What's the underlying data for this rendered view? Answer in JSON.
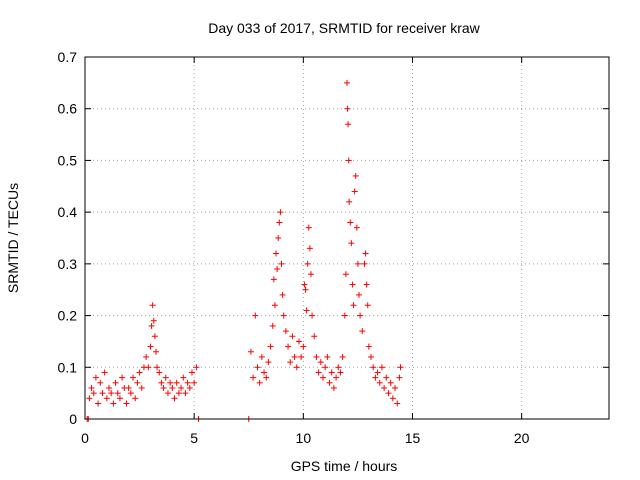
{
  "chart_data": {
    "type": "scatter",
    "title": "Day 033 of 2017, SRMTID for receiver kraw",
    "xlabel": "GPS time / hours",
    "ylabel": "SRMTID / TECUs",
    "xlim": [
      0,
      24
    ],
    "ylim": [
      0,
      0.7
    ],
    "xticks": [
      0,
      5,
      10,
      15,
      20
    ],
    "yticks": [
      0,
      0.1,
      0.2,
      0.3,
      0.4,
      0.5,
      0.6,
      0.7
    ],
    "xtick_labels": [
      "0",
      "5",
      "10",
      "15",
      "20"
    ],
    "ytick_labels": [
      "0",
      "0.1",
      "0.2",
      "0.3",
      "0.4",
      "0.5",
      "0.6",
      "0.7"
    ],
    "grid": true,
    "marker": "+",
    "color": "#ff0000",
    "series": [
      {
        "name": "SRMTID",
        "points": [
          [
            0.1,
            0.0
          ],
          [
            0.15,
            0.0
          ],
          [
            5.2,
            0.0
          ],
          [
            7.5,
            0.0
          ],
          [
            0.2,
            0.04
          ],
          [
            0.3,
            0.06
          ],
          [
            0.4,
            0.05
          ],
          [
            0.5,
            0.08
          ],
          [
            0.6,
            0.03
          ],
          [
            0.7,
            0.07
          ],
          [
            0.8,
            0.05
          ],
          [
            0.9,
            0.09
          ],
          [
            1.0,
            0.04
          ],
          [
            1.1,
            0.06
          ],
          [
            1.2,
            0.05
          ],
          [
            1.3,
            0.03
          ],
          [
            1.4,
            0.07
          ],
          [
            1.5,
            0.05
          ],
          [
            1.6,
            0.04
          ],
          [
            1.7,
            0.08
          ],
          [
            1.8,
            0.06
          ],
          [
            1.9,
            0.03
          ],
          [
            2.0,
            0.06
          ],
          [
            2.1,
            0.05
          ],
          [
            2.2,
            0.08
          ],
          [
            2.3,
            0.04
          ],
          [
            2.4,
            0.07
          ],
          [
            2.5,
            0.09
          ],
          [
            2.6,
            0.06
          ],
          [
            2.7,
            0.1
          ],
          [
            2.8,
            0.12
          ],
          [
            2.9,
            0.1
          ],
          [
            3.0,
            0.14
          ],
          [
            3.05,
            0.18
          ],
          [
            3.1,
            0.22
          ],
          [
            3.15,
            0.19
          ],
          [
            3.2,
            0.16
          ],
          [
            3.25,
            0.13
          ],
          [
            3.3,
            0.1
          ],
          [
            3.4,
            0.09
          ],
          [
            3.5,
            0.07
          ],
          [
            3.6,
            0.06
          ],
          [
            3.7,
            0.08
          ],
          [
            3.8,
            0.05
          ],
          [
            3.9,
            0.07
          ],
          [
            4.0,
            0.06
          ],
          [
            4.1,
            0.04
          ],
          [
            4.2,
            0.07
          ],
          [
            4.3,
            0.05
          ],
          [
            4.4,
            0.06
          ],
          [
            4.5,
            0.08
          ],
          [
            4.6,
            0.05
          ],
          [
            4.7,
            0.07
          ],
          [
            4.8,
            0.06
          ],
          [
            4.9,
            0.09
          ],
          [
            5.0,
            0.07
          ],
          [
            5.1,
            0.1
          ],
          [
            7.6,
            0.13
          ],
          [
            7.7,
            0.08
          ],
          [
            7.8,
            0.2
          ],
          [
            7.9,
            0.1
          ],
          [
            8.0,
            0.07
          ],
          [
            8.1,
            0.12
          ],
          [
            8.2,
            0.09
          ],
          [
            8.3,
            0.08
          ],
          [
            8.4,
            0.11
          ],
          [
            8.5,
            0.14
          ],
          [
            8.6,
            0.18
          ],
          [
            8.65,
            0.27
          ],
          [
            8.7,
            0.22
          ],
          [
            8.75,
            0.32
          ],
          [
            8.8,
            0.29
          ],
          [
            8.85,
            0.35
          ],
          [
            8.9,
            0.38
          ],
          [
            8.95,
            0.4
          ],
          [
            9.0,
            0.3
          ],
          [
            9.05,
            0.24
          ],
          [
            9.1,
            0.2
          ],
          [
            9.2,
            0.17
          ],
          [
            9.3,
            0.14
          ],
          [
            9.4,
            0.11
          ],
          [
            9.5,
            0.16
          ],
          [
            9.6,
            0.12
          ],
          [
            9.7,
            0.1
          ],
          [
            9.8,
            0.15
          ],
          [
            9.9,
            0.12
          ],
          [
            10.0,
            0.14
          ],
          [
            10.05,
            0.26
          ],
          [
            10.1,
            0.25
          ],
          [
            10.15,
            0.21
          ],
          [
            10.2,
            0.3
          ],
          [
            10.25,
            0.37
          ],
          [
            10.3,
            0.33
          ],
          [
            10.35,
            0.28
          ],
          [
            10.4,
            0.2
          ],
          [
            10.5,
            0.16
          ],
          [
            10.6,
            0.12
          ],
          [
            10.7,
            0.09
          ],
          [
            10.8,
            0.11
          ],
          [
            10.9,
            0.08
          ],
          [
            11.0,
            0.1
          ],
          [
            11.1,
            0.12
          ],
          [
            11.2,
            0.07
          ],
          [
            11.3,
            0.09
          ],
          [
            11.4,
            0.06
          ],
          [
            11.5,
            0.08
          ],
          [
            11.6,
            0.1
          ],
          [
            11.7,
            0.09
          ],
          [
            11.8,
            0.12
          ],
          [
            11.9,
            0.2
          ],
          [
            11.95,
            0.28
          ],
          [
            12.0,
            0.65
          ],
          [
            12.02,
            0.6
          ],
          [
            12.05,
            0.57
          ],
          [
            12.08,
            0.5
          ],
          [
            12.1,
            0.42
          ],
          [
            12.15,
            0.38
          ],
          [
            12.2,
            0.34
          ],
          [
            12.25,
            0.26
          ],
          [
            12.3,
            0.22
          ],
          [
            12.35,
            0.44
          ],
          [
            12.4,
            0.47
          ],
          [
            12.45,
            0.37
          ],
          [
            12.5,
            0.3
          ],
          [
            12.55,
            0.24
          ],
          [
            12.6,
            0.2
          ],
          [
            12.7,
            0.17
          ],
          [
            12.8,
            0.3
          ],
          [
            12.85,
            0.32
          ],
          [
            12.9,
            0.26
          ],
          [
            12.95,
            0.22
          ],
          [
            13.0,
            0.14
          ],
          [
            13.1,
            0.12
          ],
          [
            13.2,
            0.1
          ],
          [
            13.3,
            0.08
          ],
          [
            13.4,
            0.09
          ],
          [
            13.5,
            0.07
          ],
          [
            13.6,
            0.1
          ],
          [
            13.7,
            0.06
          ],
          [
            13.8,
            0.08
          ],
          [
            13.9,
            0.05
          ],
          [
            14.0,
            0.07
          ],
          [
            14.1,
            0.04
          ],
          [
            14.2,
            0.06
          ],
          [
            14.3,
            0.03
          ],
          [
            14.4,
            0.08
          ],
          [
            14.45,
            0.1
          ]
        ]
      }
    ]
  }
}
